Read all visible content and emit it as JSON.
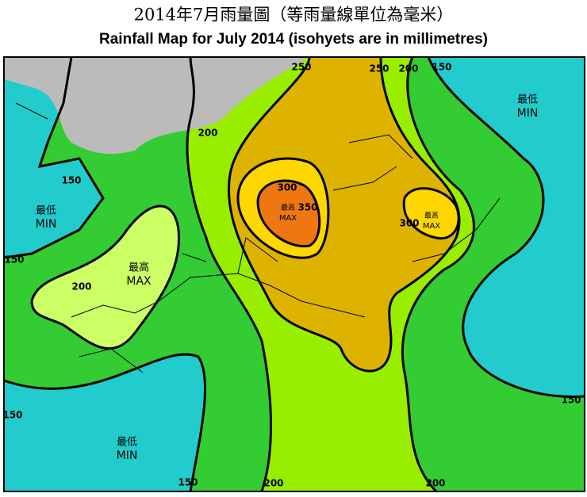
{
  "title_zh": "2014年7月雨量圖（等雨量線單位為毫米）",
  "title_en": "Rainfall Map for July 2014 (isohyets are in millimetres)",
  "isohyet_labels": [
    "250",
    "250",
    "200",
    "150",
    "200",
    "150",
    "150",
    "200",
    "300",
    "350",
    "300",
    "150",
    "150",
    "150",
    "200",
    "200"
  ],
  "extreme_labels": [
    {
      "zh": "最低",
      "en": "MIN"
    },
    {
      "zh": "最低",
      "en": "MIN"
    },
    {
      "zh": "最高",
      "en": "MAX"
    },
    {
      "zh": "最高",
      "en": "MAX"
    },
    {
      "zh": "最高",
      "en": "MAX"
    },
    {
      "zh": "最低",
      "en": "MIN"
    }
  ]
}
